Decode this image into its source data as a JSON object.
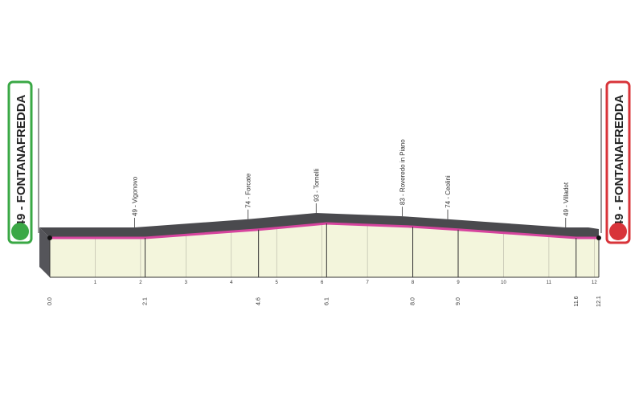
{
  "start": {
    "label": "49 - FONTANAFREDDA"
  },
  "finish": {
    "label": "49 - FONTANAFREDDA"
  },
  "chart_data": {
    "type": "profile",
    "x": [
      {
        "value": 0,
        "label": "0.0"
      },
      2.1,
      4.6,
      6.1,
      {
        "value": 8,
        "label": "8.0"
      },
      {
        "value": 9,
        "label": "9.0"
      },
      11.6,
      12.1
    ],
    "values": [
      49,
      49,
      74,
      93,
      83,
      74,
      49,
      49
    ],
    "point_labels": [
      null,
      "49 - Vigonovo",
      "74 - Forcate",
      "93 - Tornelli",
      "83 - Roveredo in Piano",
      "74 - Ceolini",
      "49 - Villadot",
      null
    ],
    "xlim": [
      0,
      12.1
    ],
    "xticks": [
      1,
      2,
      3,
      4,
      5,
      6,
      7,
      8,
      9,
      10,
      11,
      12
    ],
    "color": "#d6449e"
  }
}
